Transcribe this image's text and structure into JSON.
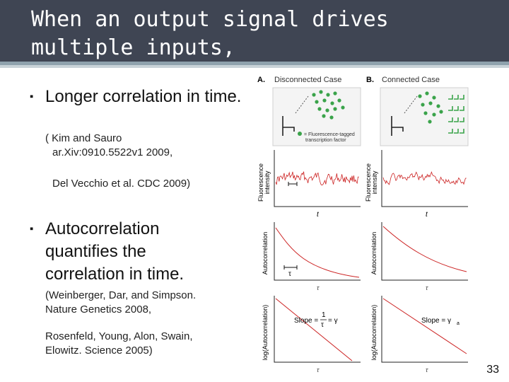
{
  "title": "When an output signal drives multiple inputs,",
  "bullets": [
    {
      "text": "Longer correlation in time."
    },
    {
      "text": "Autocorrelation quantifies the correlation in time."
    }
  ],
  "refs": {
    "kim_line1": "( Kim and Sauro",
    "kim_line2": "ar.Xiv:0910.5522v1 2009,",
    "delvecchio": "Del Vecchio et al. CDC 2009)",
    "weinberger_line1": "(Weinberger, Dar, and Simpson.",
    "weinberger_line2": "Nature Genetics 2008,",
    "rosenfeld_line1": "Rosenfeld, Young, Alon, Swain,",
    "rosenfeld_line2": "Elowitz. Science 2005)"
  },
  "figure": {
    "panel_a": "A.",
    "panel_a_title": "Disconnected Case",
    "panel_b": "B.",
    "panel_b_title": "Connected Case",
    "legend_line1": "= Fluorescence-tagged",
    "legend_line2": "transcription factor",
    "ylabel_fluor_1": "Fluorescence",
    "ylabel_fluor_2": "intensity",
    "xlabel_t": "t",
    "ylabel_auto": "Autocorrelation",
    "xlabel_tau": "τ",
    "tau_marker": "τ",
    "ylabel_log": "log(Autocorrelation)",
    "slope_a": "Slope = ",
    "slope_a_num": "1",
    "slope_a_den": "τ",
    "slope_a_eq": "= γ",
    "slope_b": "Slope = γ",
    "slope_b_sub": "a"
  },
  "page_number": "33",
  "colors": {
    "title_bg": "#3f4553",
    "accent": "#8fa2ad",
    "signal": "#cc2222",
    "dots": "#3aa34a"
  }
}
